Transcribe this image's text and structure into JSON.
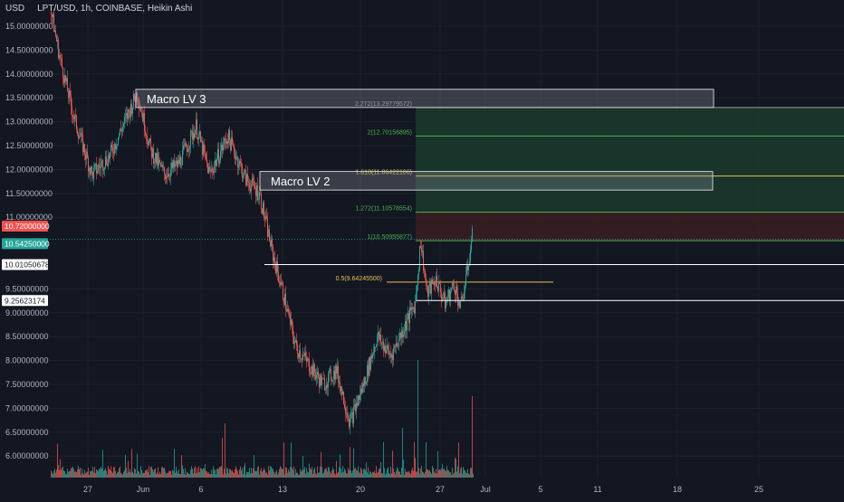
{
  "header": {
    "currency": "USD",
    "symbol_line": "LPT/USD, 1h, COINBASE, Heikin Ashi"
  },
  "colors": {
    "background": "#131722",
    "grid": "#1e222d",
    "up": "#26a69a",
    "down": "#ef5350",
    "fib_green_fill": "#1b3a2c",
    "fib_green_line": "#4caf50",
    "fib_red_fill": "#3b1f22",
    "fib_yellow": "#e6c34a",
    "white_line": "#ffffff",
    "macro_box": "#8a8e98",
    "price_tag_red": "#ef5350",
    "price_tag_green": "#26a69a"
  },
  "chart_data": {
    "type": "candlestick",
    "title": "LPT/USD, 1h, COINBASE, Heikin Ashi",
    "ylabel": "USD",
    "ylim": [
      5.55,
      15.55
    ],
    "y_ticks": [
      15.0,
      14.5,
      14.0,
      13.5,
      13.0,
      12.5,
      12.0,
      11.5,
      11.0,
      9.5,
      9.0,
      8.5,
      8.0,
      7.5,
      7.0,
      6.5,
      6.0
    ],
    "y_tick_labels": [
      "15.00000000",
      "14.50000000",
      "14.00000000",
      "13.50000000",
      "13.00000000",
      "12.50000000",
      "12.00000000",
      "11.50000000",
      "11.00000000",
      "9.50000000",
      "9.00000000",
      "8.50000000",
      "8.00000000",
      "7.50000000",
      "7.00000000",
      "6.50000000",
      "6.00000000"
    ],
    "x_tick_labels": [
      "27",
      "Jun",
      "6",
      "13",
      "20",
      "27",
      "Jul",
      "5",
      "11",
      "18",
      "25"
    ],
    "price_path": [
      {
        "i": 0,
        "price": 15.3
      },
      {
        "i": 10,
        "price": 14.3
      },
      {
        "i": 25,
        "price": 13.1
      },
      {
        "i": 45,
        "price": 11.9
      },
      {
        "i": 65,
        "price": 12.3
      },
      {
        "i": 95,
        "price": 13.6
      },
      {
        "i": 110,
        "price": 12.4
      },
      {
        "i": 125,
        "price": 11.9
      },
      {
        "i": 140,
        "price": 12.1
      },
      {
        "i": 160,
        "price": 12.9
      },
      {
        "i": 175,
        "price": 11.9
      },
      {
        "i": 195,
        "price": 12.7
      },
      {
        "i": 215,
        "price": 11.8
      },
      {
        "i": 230,
        "price": 11.5
      },
      {
        "i": 245,
        "price": 10.2
      },
      {
        "i": 255,
        "price": 9.5
      },
      {
        "i": 270,
        "price": 8.3
      },
      {
        "i": 285,
        "price": 7.9
      },
      {
        "i": 300,
        "price": 7.5
      },
      {
        "i": 315,
        "price": 7.8
      },
      {
        "i": 330,
        "price": 6.7
      },
      {
        "i": 345,
        "price": 7.5
      },
      {
        "i": 360,
        "price": 8.5
      },
      {
        "i": 375,
        "price": 8.1
      },
      {
        "i": 390,
        "price": 8.7
      },
      {
        "i": 402,
        "price": 9.2
      },
      {
        "i": 408,
        "price": 10.5
      },
      {
        "i": 415,
        "price": 9.4
      },
      {
        "i": 425,
        "price": 9.7
      },
      {
        "i": 435,
        "price": 9.2
      },
      {
        "i": 445,
        "price": 9.6
      },
      {
        "i": 452,
        "price": 9.1
      },
      {
        "i": 458,
        "price": 9.7
      },
      {
        "i": 465,
        "price": 10.6
      }
    ],
    "price_tags": [
      {
        "value": 10.72,
        "label": "10.72000000",
        "color": "red"
      },
      {
        "value": 10.5425,
        "label": "10.54250000",
        "color": "green"
      },
      {
        "value": 10.01050678,
        "label": "10.01050678",
        "color": "white"
      },
      {
        "value": 9.25623174,
        "label": "9.25623174",
        "color": "white"
      }
    ],
    "fib_levels": [
      {
        "ratio_label": "2.272(13.29779572)",
        "value": 13.29779572,
        "color": "gray"
      },
      {
        "ratio_label": "2(12.70156895)",
        "value": 12.70156895,
        "color": "green"
      },
      {
        "ratio_label": "1.618(11.86422106)",
        "value": 11.86422106,
        "color": "yellow"
      },
      {
        "ratio_label": "1.272(11.10578554)",
        "value": 11.10578554,
        "color": "green"
      },
      {
        "ratio_label": "1(10.50955877)",
        "value": 10.50955877,
        "color": "green"
      },
      {
        "ratio_label": "0.5(9.64245500)",
        "value": 9.642455,
        "color": "yellow"
      }
    ],
    "zones": [
      {
        "name": "Macro LV 3",
        "top": 13.68,
        "bottom": 13.3
      },
      {
        "name": "Macro LV 2",
        "top": 11.96,
        "bottom": 11.57
      }
    ],
    "horizontal_lines": [
      10.01050678,
      9.25623174
    ]
  }
}
